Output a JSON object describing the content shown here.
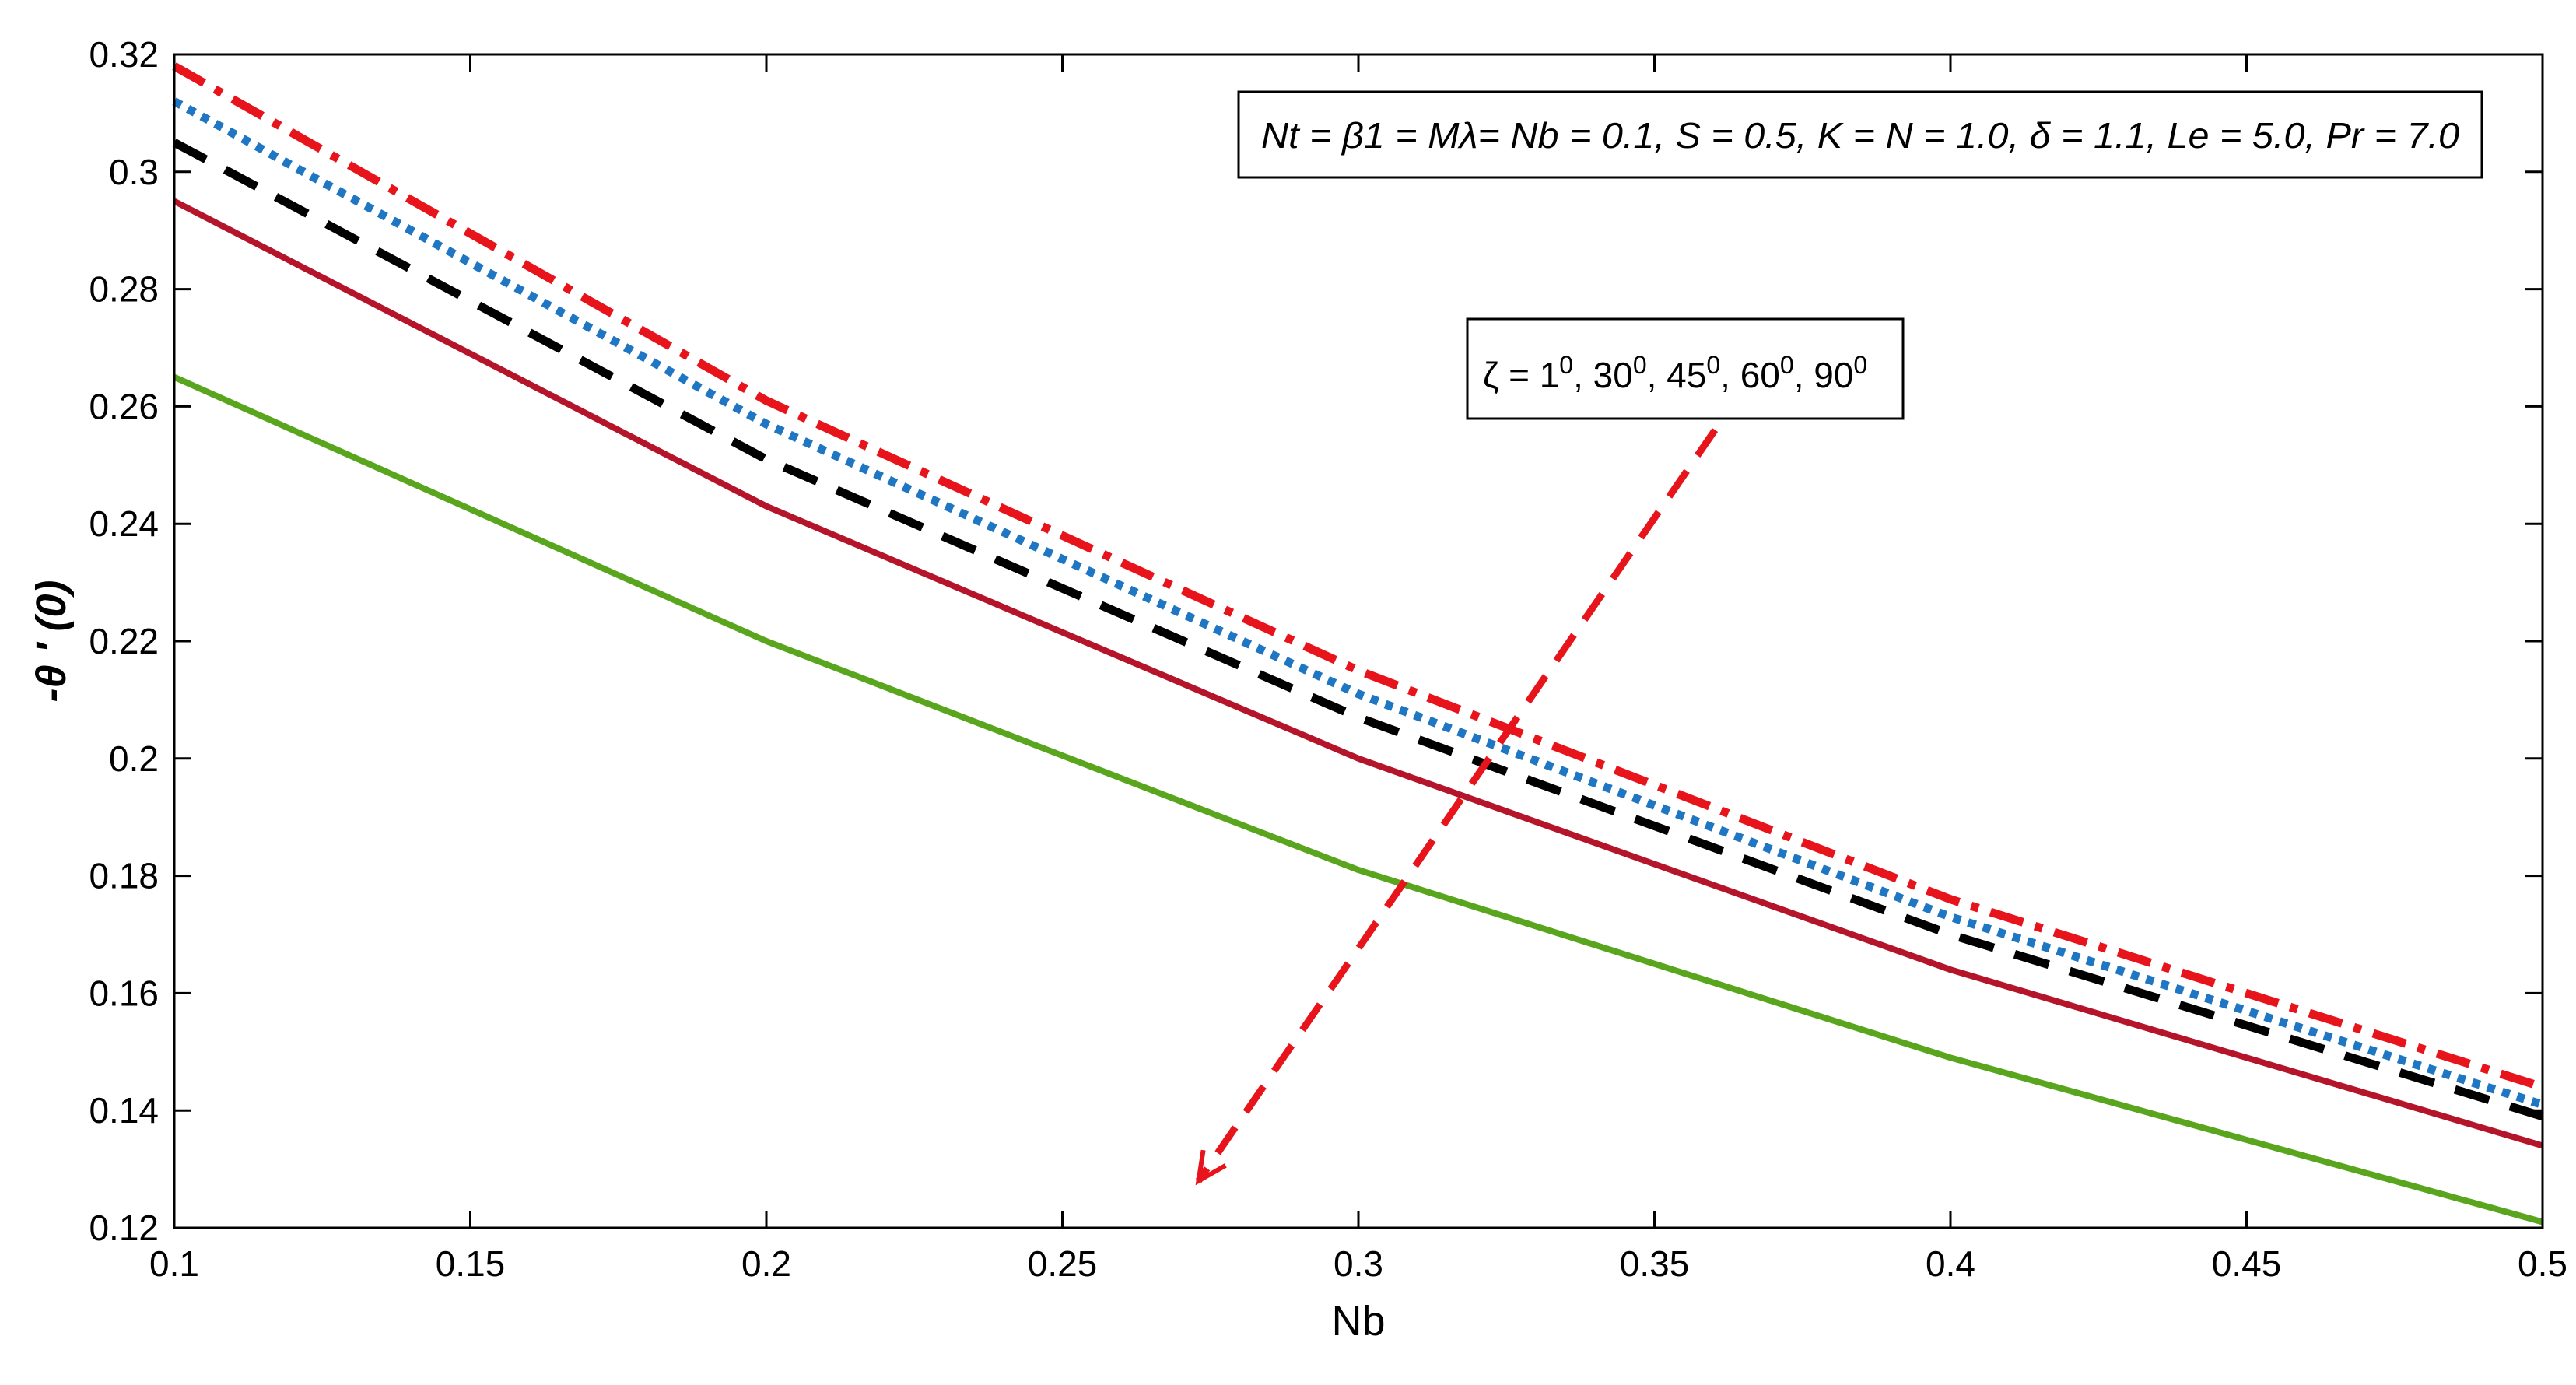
{
  "chart_data": {
    "type": "line",
    "title": "",
    "xlabel": "Nb",
    "ylabel": "-θ ′ (0)",
    "xlim": [
      0.1,
      0.5
    ],
    "ylim": [
      0.12,
      0.32
    ],
    "x": [
      0.1,
      0.2,
      0.3,
      0.4,
      0.5
    ],
    "x_ticks": [
      "0.1",
      "0.15",
      "0.2",
      "0.25",
      "0.3",
      "0.35",
      "0.4",
      "0.45",
      "0.5"
    ],
    "y_ticks": [
      "0.12",
      "0.14",
      "0.16",
      "0.18",
      "0.2",
      "0.22",
      "0.24",
      "0.26",
      "0.28",
      "0.3",
      "0.32"
    ],
    "grid": false,
    "series": [
      {
        "name": "ζ = 1⁰",
        "color": "#e8141c",
        "style": "dashdot",
        "values": [
          0.318,
          0.261,
          0.215,
          0.176,
          0.144
        ]
      },
      {
        "name": "ζ = 30⁰",
        "color": "#1f77c4",
        "style": "dotted",
        "values": [
          0.312,
          0.257,
          0.211,
          0.173,
          0.141
        ]
      },
      {
        "name": "ζ = 45⁰",
        "color": "#000000",
        "style": "dashed",
        "values": [
          0.305,
          0.251,
          0.207,
          0.17,
          0.139
        ]
      },
      {
        "name": "ζ = 60⁰",
        "color": "#b5152b",
        "style": "solid",
        "values": [
          0.295,
          0.243,
          0.2,
          0.164,
          0.134
        ]
      },
      {
        "name": "ζ = 90⁰",
        "color": "#5aa51e",
        "style": "solid",
        "values": [
          0.265,
          0.22,
          0.181,
          0.149,
          0.121
        ]
      }
    ],
    "param_box": "Nt = β1 = Mλ= Nb = 0.1, S = 0.5, K = N = 1.0, δ = 1.1, Le = 5.0, Pr = 7.0",
    "zeta_annotation": {
      "prefix": "ζ = 1",
      "parts": [
        "0",
        ", 30",
        "0",
        ", 45",
        "0",
        ", 60",
        "0",
        ", 90",
        "0"
      ]
    },
    "arrow": {
      "color": "#e8141c",
      "from": [
        0.365,
        0.263
      ],
      "to": [
        0.273,
        0.128
      ]
    }
  }
}
